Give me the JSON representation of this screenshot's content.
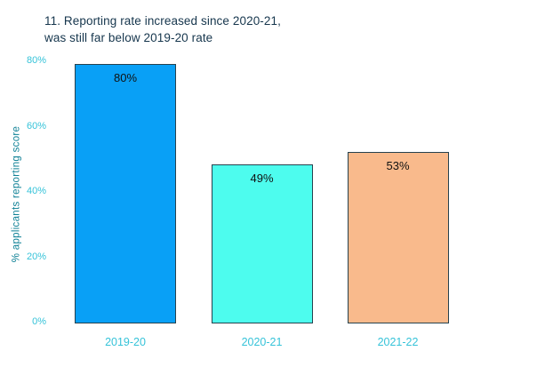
{
  "title": {
    "line1": "11. Reporting rate increased since 2020-21,",
    "line2": "was still far below 2019-20 rate"
  },
  "chart_data": {
    "type": "bar",
    "title": "11. Reporting rate increased since 2020-21, was still far below 2019-20 rate",
    "categories": [
      "2019-20",
      "2020-21",
      "2021-22"
    ],
    "values": [
      80,
      49,
      53
    ],
    "value_labels": [
      "80%",
      "49%",
      "53%"
    ],
    "xlabel": "",
    "ylabel": "% applicants reporting score",
    "ylim": [
      0,
      80
    ],
    "yticks": [
      0,
      20,
      40,
      60,
      80
    ],
    "ytick_labels": [
      "0%",
      "20%",
      "40%",
      "60%",
      "80%"
    ],
    "grid": false,
    "legend": false,
    "bar_colors": [
      "#09a0f6",
      "#4dfcee",
      "#f9ba8c"
    ],
    "bar_border_color": "#26424e",
    "title_color": "#16364d",
    "tick_label_color": "#36c3d9",
    "axis_label_color": "#0f8196",
    "data_label_color": "#111111",
    "background_color": "#ffffff"
  }
}
